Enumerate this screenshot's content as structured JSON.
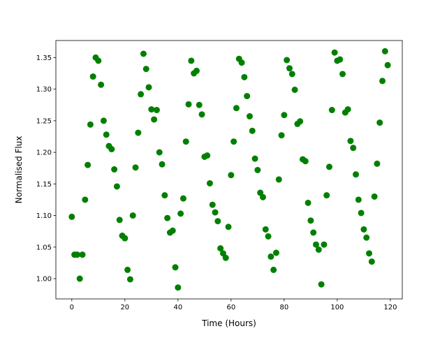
{
  "chart_data": {
    "type": "scatter",
    "title": "",
    "xlabel": "Time (Hours)",
    "ylabel": "Normalised Flux",
    "xlim": [
      -6,
      124.5
    ],
    "ylim": [
      0.968,
      1.377
    ],
    "xticks": [
      0,
      20,
      40,
      60,
      80,
      100,
      120
    ],
    "xtick_labels": [
      "0",
      "20",
      "40",
      "60",
      "80",
      "100",
      "120"
    ],
    "yticks": [
      1.0,
      1.05,
      1.1,
      1.15,
      1.2,
      1.25,
      1.3,
      1.35
    ],
    "ytick_labels": [
      "1.00",
      "1.05",
      "1.10",
      "1.15",
      "1.20",
      "1.25",
      "1.30",
      "1.35"
    ],
    "grid": false,
    "marker_color": "#008000",
    "x": [
      0,
      1,
      2,
      3,
      4,
      5,
      6,
      7,
      8,
      9,
      10,
      11,
      12,
      13,
      14,
      15,
      16,
      17,
      18,
      19,
      20,
      21,
      22,
      23,
      24,
      25,
      26,
      27,
      28,
      29,
      30,
      31,
      32,
      33,
      34,
      35,
      36,
      37,
      38,
      39,
      40,
      41,
      42,
      43,
      44,
      45,
      46,
      47,
      48,
      49,
      50,
      51,
      52,
      53,
      54,
      55,
      56,
      57,
      58,
      59,
      60,
      61,
      62,
      63,
      64,
      65,
      66,
      67,
      68,
      69,
      70,
      71,
      72,
      73,
      74,
      75,
      76,
      77,
      78,
      79,
      80,
      81,
      82,
      83,
      84,
      85,
      86,
      87,
      88,
      89,
      90,
      91,
      92,
      93,
      94,
      95,
      96,
      97,
      98,
      99,
      100,
      101,
      102,
      103,
      104,
      105,
      106,
      107,
      108,
      109,
      110,
      111,
      112,
      113,
      114,
      115,
      116,
      117,
      118,
      119
    ],
    "y": [
      1.098,
      1.038,
      1.038,
      1.0,
      1.038,
      1.125,
      1.18,
      1.244,
      1.32,
      1.35,
      1.345,
      1.307,
      1.25,
      1.228,
      1.21,
      1.205,
      1.173,
      1.146,
      1.093,
      1.068,
      1.064,
      1.014,
      0.999,
      1.1,
      1.176,
      1.231,
      1.292,
      1.356,
      1.332,
      1.303,
      1.268,
      1.252,
      1.267,
      1.2,
      1.181,
      1.132,
      1.096,
      1.073,
      1.076,
      1.018,
      0.986,
      1.103,
      1.127,
      1.217,
      1.276,
      1.345,
      1.325,
      1.329,
      1.275,
      1.26,
      1.193,
      1.195,
      1.151,
      1.117,
      1.105,
      1.091,
      1.048,
      1.04,
      1.033,
      1.082,
      1.164,
      1.217,
      1.27,
      1.348,
      1.342,
      1.319,
      1.289,
      1.257,
      1.234,
      1.19,
      1.172,
      1.136,
      1.129,
      1.078,
      1.067,
      1.035,
      1.014,
      1.041,
      1.157,
      1.227,
      1.259,
      1.346,
      1.333,
      1.324,
      1.299,
      1.245,
      1.249,
      1.189,
      1.186,
      1.12,
      1.092,
      1.073,
      1.054,
      1.046,
      0.991,
      1.054,
      1.132,
      1.177,
      1.267,
      1.358,
      1.345,
      1.347,
      1.324,
      1.263,
      1.268,
      1.218,
      1.207,
      1.165,
      1.125,
      1.104,
      1.078,
      1.065,
      1.04,
      1.027,
      1.13,
      1.182,
      1.247,
      1.313,
      1.36,
      1.338
    ]
  }
}
